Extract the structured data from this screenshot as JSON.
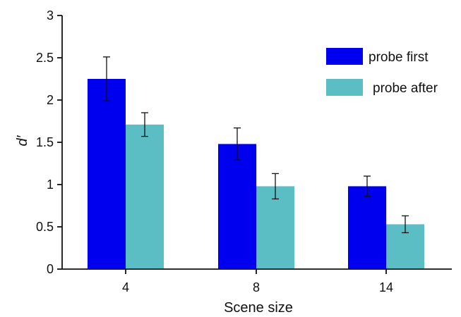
{
  "chart_data": {
    "type": "bar",
    "categories": [
      "4",
      "8",
      "14"
    ],
    "series": [
      {
        "name": "probe first",
        "color": "#0000ee",
        "values": [
          2.25,
          1.48,
          0.98
        ],
        "errors": [
          0.26,
          0.19,
          0.12
        ]
      },
      {
        "name": "probe after",
        "color": "#5bbec5",
        "values": [
          1.71,
          0.98,
          0.53
        ],
        "errors": [
          0.14,
          0.15,
          0.1
        ]
      }
    ],
    "xlabel": "Scene size",
    "ylabel": "d′",
    "ylim": [
      0,
      3
    ],
    "yticks": [
      "0",
      "0.5",
      "1",
      "1.5",
      "2",
      "2.5",
      "3"
    ],
    "legend_position": "top-right",
    "grid": false
  }
}
